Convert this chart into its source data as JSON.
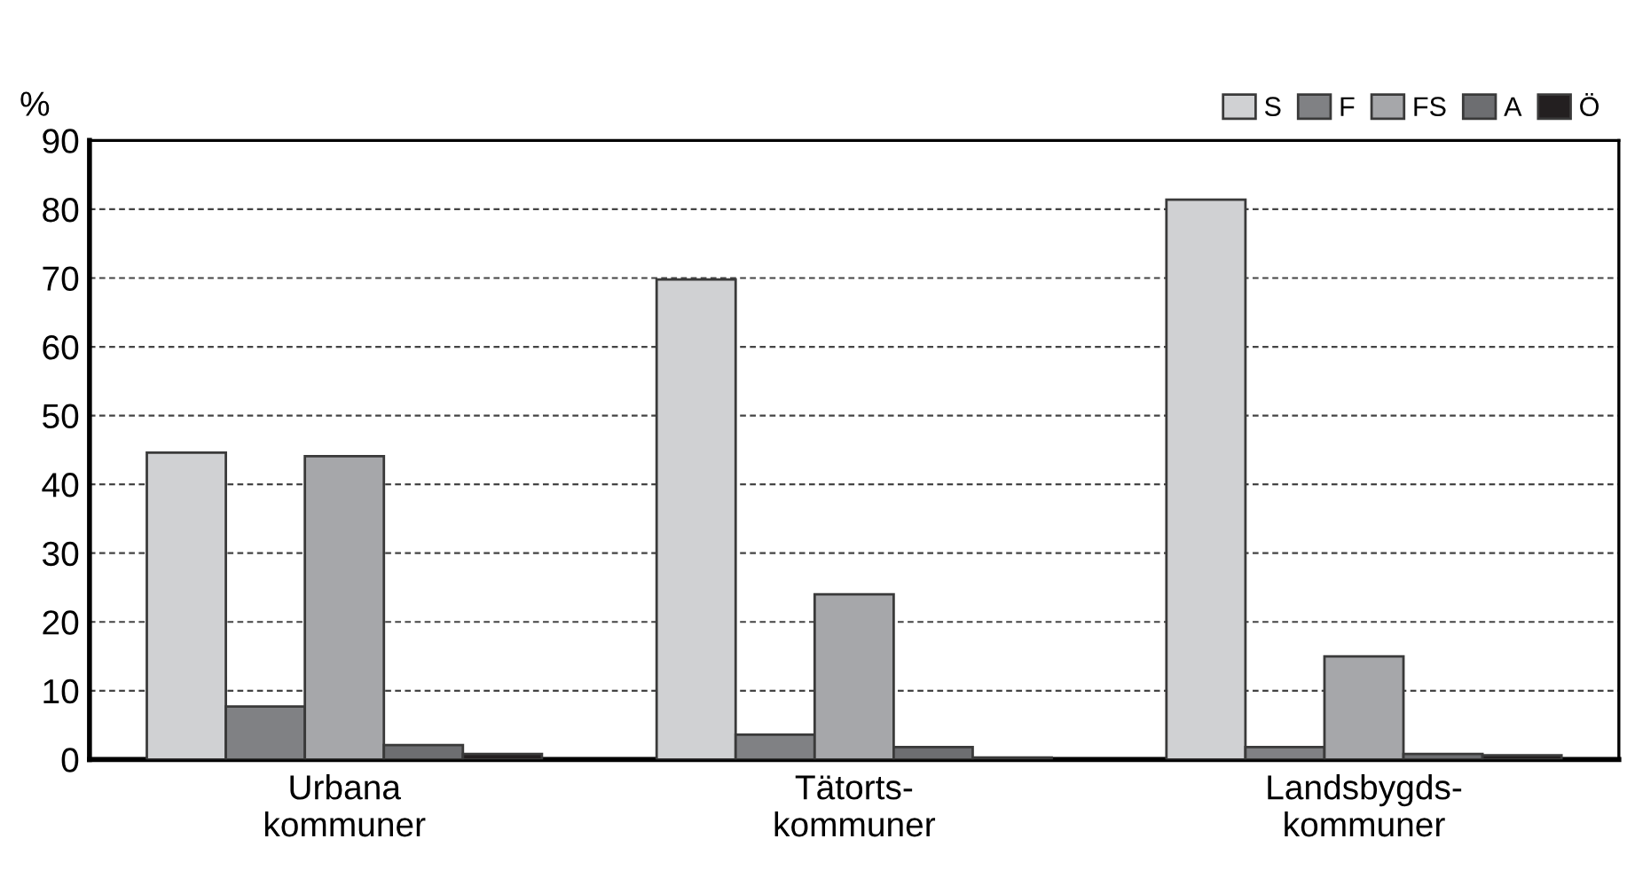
{
  "chart_data": {
    "type": "bar",
    "ylabel": "%",
    "categories": [
      "Urbana\nkommuner",
      "Tätorts-\nkommuner",
      "Landsbygds-\nkommuner"
    ],
    "series": [
      {
        "name": "S",
        "color": "#d0d1d3",
        "values": [
          44.6,
          69.8,
          81.4
        ]
      },
      {
        "name": "F",
        "color": "#808184",
        "values": [
          7.7,
          3.6,
          1.8
        ]
      },
      {
        "name": "FS",
        "color": "#a6a7aa",
        "values": [
          44.1,
          24.0,
          15.0
        ]
      },
      {
        "name": "A",
        "color": "#6d6e71",
        "values": [
          2.1,
          1.8,
          0.8
        ]
      },
      {
        "name": "Ö",
        "color": "#231f20",
        "values": [
          0.8,
          0.3,
          0.6
        ]
      }
    ],
    "ylim": [
      0,
      90
    ],
    "yticks": [
      0,
      10,
      20,
      30,
      40,
      50,
      60,
      70,
      80,
      90
    ],
    "grid": "y",
    "legend": "top right"
  }
}
